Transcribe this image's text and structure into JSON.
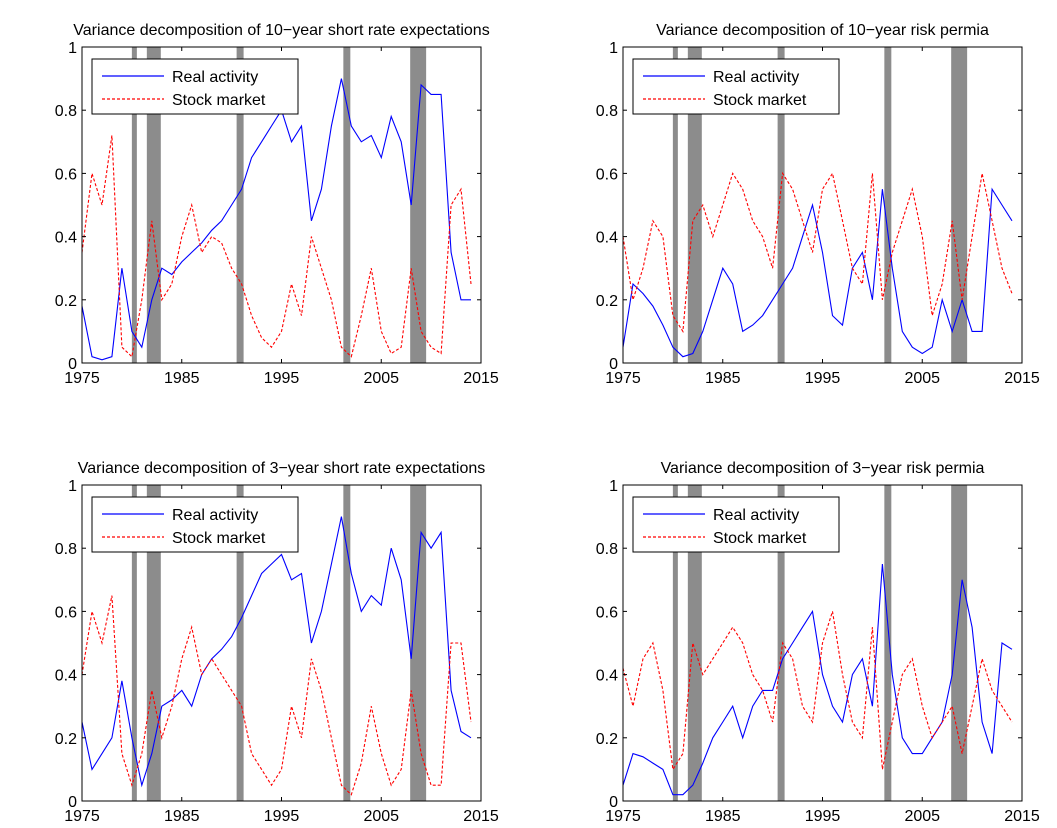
{
  "figure": {
    "rec_shade_color": "#8c8c8c",
    "line_colors": {
      "real_activity": "#0000ff",
      "stock_market": "#ff0000"
    }
  },
  "recessions": [
    [
      1980.0,
      1980.5
    ],
    [
      1981.5,
      1982.9
    ],
    [
      1990.5,
      1991.2
    ],
    [
      2001.2,
      2001.9
    ],
    [
      2007.9,
      2009.5
    ]
  ],
  "chart_data": [
    {
      "type": "line",
      "title": "Variance decomposition of 10−year short rate expectations",
      "xlabel": "",
      "ylabel": "",
      "xlim": [
        1975,
        2015
      ],
      "ylim": [
        0,
        1
      ],
      "xticks": [
        "1975",
        "1985",
        "1995",
        "2005",
        "2015"
      ],
      "yticks": [
        "0",
        "0.2",
        "0.4",
        "0.6",
        "0.8",
        "1"
      ],
      "legend": "top-left",
      "series": [
        {
          "name": "Real activity",
          "style": "solid",
          "x": [
            1975,
            1976,
            1977,
            1978,
            1979,
            1980,
            1981,
            1982,
            1983,
            1984,
            1985,
            1986,
            1987,
            1988,
            1989,
            1990,
            1991,
            1992,
            1993,
            1994,
            1995,
            1996,
            1997,
            1998,
            1999,
            2000,
            2001,
            2002,
            2003,
            2004,
            2005,
            2006,
            2007,
            2008,
            2009,
            2010,
            2011,
            2012,
            2013,
            2014
          ],
          "values": [
            0.18,
            0.02,
            0.01,
            0.02,
            0.3,
            0.1,
            0.05,
            0.2,
            0.3,
            0.28,
            0.32,
            0.35,
            0.38,
            0.42,
            0.45,
            0.5,
            0.55,
            0.65,
            0.7,
            0.75,
            0.8,
            0.7,
            0.75,
            0.45,
            0.55,
            0.75,
            0.9,
            0.75,
            0.7,
            0.72,
            0.65,
            0.78,
            0.7,
            0.5,
            0.88,
            0.85,
            0.85,
            0.35,
            0.2,
            0.2
          ]
        },
        {
          "name": "Stock market",
          "style": "dashed",
          "x": [
            1975,
            1976,
            1977,
            1978,
            1979,
            1980,
            1981,
            1982,
            1983,
            1984,
            1985,
            1986,
            1987,
            1988,
            1989,
            1990,
            1991,
            1992,
            1993,
            1994,
            1995,
            1996,
            1997,
            1998,
            1999,
            2000,
            2001,
            2002,
            2003,
            2004,
            2005,
            2006,
            2007,
            2008,
            2009,
            2010,
            2011,
            2012,
            2013,
            2014
          ],
          "values": [
            0.35,
            0.6,
            0.5,
            0.72,
            0.05,
            0.02,
            0.2,
            0.45,
            0.2,
            0.25,
            0.4,
            0.5,
            0.35,
            0.4,
            0.38,
            0.3,
            0.25,
            0.15,
            0.08,
            0.05,
            0.1,
            0.25,
            0.15,
            0.4,
            0.3,
            0.2,
            0.05,
            0.02,
            0.15,
            0.3,
            0.1,
            0.03,
            0.05,
            0.3,
            0.1,
            0.05,
            0.03,
            0.5,
            0.55,
            0.25
          ]
        }
      ]
    },
    {
      "type": "line",
      "title": "Variance decomposition of 10−year risk permia",
      "xlabel": "",
      "ylabel": "",
      "xlim": [
        1975,
        2015
      ],
      "ylim": [
        0,
        1
      ],
      "xticks": [
        "1975",
        "1985",
        "1995",
        "2005",
        "2015"
      ],
      "yticks": [
        "0",
        "0.2",
        "0.4",
        "0.6",
        "0.8",
        "1"
      ],
      "legend": "top-left",
      "series": [
        {
          "name": "Real activity",
          "style": "solid",
          "x": [
            1975,
            1976,
            1977,
            1978,
            1979,
            1980,
            1981,
            1982,
            1983,
            1984,
            1985,
            1986,
            1987,
            1988,
            1989,
            1990,
            1991,
            1992,
            1993,
            1994,
            1995,
            1996,
            1997,
            1998,
            1999,
            2000,
            2001,
            2002,
            2003,
            2004,
            2005,
            2006,
            2007,
            2008,
            2009,
            2010,
            2011,
            2012,
            2013,
            2014
          ],
          "values": [
            0.05,
            0.25,
            0.22,
            0.18,
            0.12,
            0.05,
            0.02,
            0.03,
            0.1,
            0.2,
            0.3,
            0.25,
            0.1,
            0.12,
            0.15,
            0.2,
            0.25,
            0.3,
            0.4,
            0.5,
            0.35,
            0.15,
            0.12,
            0.3,
            0.35,
            0.2,
            0.55,
            0.3,
            0.1,
            0.05,
            0.03,
            0.05,
            0.2,
            0.1,
            0.2,
            0.1,
            0.1,
            0.55,
            0.5,
            0.45
          ]
        },
        {
          "name": "Stock market",
          "style": "dashed",
          "x": [
            1975,
            1976,
            1977,
            1978,
            1979,
            1980,
            1981,
            1982,
            1983,
            1984,
            1985,
            1986,
            1987,
            1988,
            1989,
            1990,
            1991,
            1992,
            1993,
            1994,
            1995,
            1996,
            1997,
            1998,
            1999,
            2000,
            2001,
            2002,
            2003,
            2004,
            2005,
            2006,
            2007,
            2008,
            2009,
            2010,
            2011,
            2012,
            2013,
            2014
          ],
          "values": [
            0.4,
            0.2,
            0.3,
            0.45,
            0.4,
            0.15,
            0.1,
            0.45,
            0.5,
            0.4,
            0.5,
            0.6,
            0.55,
            0.45,
            0.4,
            0.3,
            0.6,
            0.55,
            0.45,
            0.35,
            0.55,
            0.6,
            0.45,
            0.3,
            0.25,
            0.6,
            0.2,
            0.35,
            0.45,
            0.55,
            0.4,
            0.15,
            0.25,
            0.45,
            0.2,
            0.4,
            0.6,
            0.45,
            0.3,
            0.22
          ]
        }
      ]
    },
    {
      "type": "line",
      "title": "Variance decomposition of 3−year short rate expectations",
      "xlabel": "",
      "ylabel": "",
      "xlim": [
        1975,
        2015
      ],
      "ylim": [
        0,
        1
      ],
      "xticks": [
        "1975",
        "1985",
        "1995",
        "2005",
        "2015"
      ],
      "yticks": [
        "0",
        "0.2",
        "0.4",
        "0.6",
        "0.8",
        "1"
      ],
      "legend": "top-left",
      "series": [
        {
          "name": "Real activity",
          "style": "solid",
          "x": [
            1975,
            1976,
            1977,
            1978,
            1979,
            1980,
            1981,
            1982,
            1983,
            1984,
            1985,
            1986,
            1987,
            1988,
            1989,
            1990,
            1991,
            1992,
            1993,
            1994,
            1995,
            1996,
            1997,
            1998,
            1999,
            2000,
            2001,
            2002,
            2003,
            2004,
            2005,
            2006,
            2007,
            2008,
            2009,
            2010,
            2011,
            2012,
            2013,
            2014
          ],
          "values": [
            0.25,
            0.1,
            0.15,
            0.2,
            0.38,
            0.2,
            0.05,
            0.15,
            0.3,
            0.32,
            0.35,
            0.3,
            0.4,
            0.45,
            0.48,
            0.52,
            0.58,
            0.65,
            0.72,
            0.75,
            0.78,
            0.7,
            0.72,
            0.5,
            0.6,
            0.75,
            0.9,
            0.72,
            0.6,
            0.65,
            0.62,
            0.8,
            0.7,
            0.45,
            0.85,
            0.8,
            0.85,
            0.35,
            0.22,
            0.2
          ]
        },
        {
          "name": "Stock market",
          "style": "dashed",
          "x": [
            1975,
            1976,
            1977,
            1978,
            1979,
            1980,
            1981,
            1982,
            1983,
            1984,
            1985,
            1986,
            1987,
            1988,
            1989,
            1990,
            1991,
            1992,
            1993,
            1994,
            1995,
            1996,
            1997,
            1998,
            1999,
            2000,
            2001,
            2002,
            2003,
            2004,
            2005,
            2006,
            2007,
            2008,
            2009,
            2010,
            2011,
            2012,
            2013,
            2014
          ],
          "values": [
            0.4,
            0.6,
            0.5,
            0.65,
            0.15,
            0.05,
            0.15,
            0.35,
            0.2,
            0.3,
            0.45,
            0.55,
            0.4,
            0.45,
            0.4,
            0.35,
            0.3,
            0.15,
            0.1,
            0.05,
            0.1,
            0.3,
            0.2,
            0.45,
            0.35,
            0.2,
            0.05,
            0.02,
            0.12,
            0.3,
            0.15,
            0.05,
            0.1,
            0.35,
            0.15,
            0.05,
            0.05,
            0.5,
            0.5,
            0.25
          ]
        }
      ]
    },
    {
      "type": "line",
      "title": "Variance decomposition of 3−year risk permia",
      "xlabel": "",
      "ylabel": "",
      "xlim": [
        1975,
        2015
      ],
      "ylim": [
        0,
        1
      ],
      "xticks": [
        "1975",
        "1985",
        "1995",
        "2005",
        "2015"
      ],
      "yticks": [
        "0",
        "0.2",
        "0.4",
        "0.6",
        "0.8",
        "1"
      ],
      "legend": "top-left",
      "series": [
        {
          "name": "Real activity",
          "style": "solid",
          "x": [
            1975,
            1976,
            1977,
            1978,
            1979,
            1980,
            1981,
            1982,
            1983,
            1984,
            1985,
            1986,
            1987,
            1988,
            1989,
            1990,
            1991,
            1992,
            1993,
            1994,
            1995,
            1996,
            1997,
            1998,
            1999,
            2000,
            2001,
            2002,
            2003,
            2004,
            2005,
            2006,
            2007,
            2008,
            2009,
            2010,
            2011,
            2012,
            2013,
            2014
          ],
          "values": [
            0.05,
            0.15,
            0.14,
            0.12,
            0.1,
            0.02,
            0.02,
            0.05,
            0.12,
            0.2,
            0.25,
            0.3,
            0.2,
            0.3,
            0.35,
            0.35,
            0.45,
            0.5,
            0.55,
            0.6,
            0.4,
            0.3,
            0.25,
            0.4,
            0.45,
            0.3,
            0.75,
            0.4,
            0.2,
            0.15,
            0.15,
            0.2,
            0.25,
            0.4,
            0.7,
            0.55,
            0.25,
            0.15,
            0.5,
            0.48
          ]
        },
        {
          "name": "Stock market",
          "style": "dashed",
          "x": [
            1975,
            1976,
            1977,
            1978,
            1979,
            1980,
            1981,
            1982,
            1983,
            1984,
            1985,
            1986,
            1987,
            1988,
            1989,
            1990,
            1991,
            1992,
            1993,
            1994,
            1995,
            1996,
            1997,
            1998,
            1999,
            2000,
            2001,
            2002,
            2003,
            2004,
            2005,
            2006,
            2007,
            2008,
            2009,
            2010,
            2011,
            2012,
            2013,
            2014
          ],
          "values": [
            0.42,
            0.3,
            0.45,
            0.5,
            0.35,
            0.1,
            0.15,
            0.5,
            0.4,
            0.45,
            0.5,
            0.55,
            0.5,
            0.4,
            0.35,
            0.25,
            0.5,
            0.45,
            0.3,
            0.25,
            0.5,
            0.6,
            0.4,
            0.25,
            0.2,
            0.55,
            0.1,
            0.25,
            0.4,
            0.45,
            0.3,
            0.2,
            0.25,
            0.3,
            0.15,
            0.3,
            0.45,
            0.35,
            0.3,
            0.25
          ]
        }
      ]
    }
  ]
}
